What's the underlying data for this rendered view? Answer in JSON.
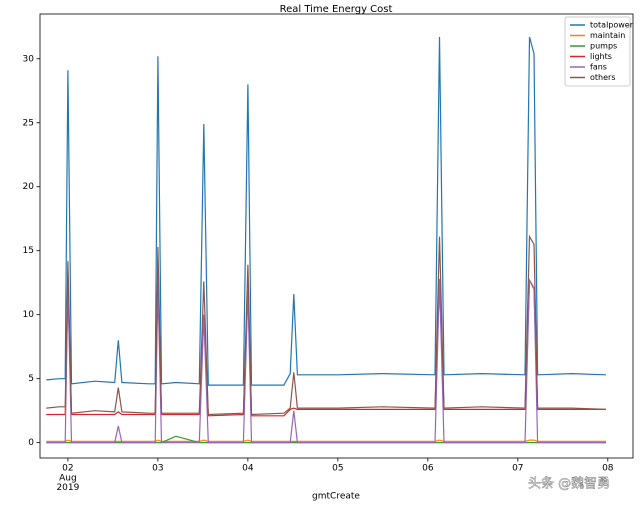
{
  "chart_data": {
    "type": "line",
    "title": "Real Time Energy Cost",
    "x_label": "gmtCreate",
    "x": [
      1.76,
      1.9,
      1.97,
      2.0,
      2.04,
      2.3,
      2.52,
      2.56,
      2.6,
      2.9,
      2.97,
      3.0,
      3.04,
      3.2,
      3.46,
      3.51,
      3.56,
      3.95,
      4.0,
      4.04,
      4.4,
      4.47,
      4.51,
      4.55,
      5.0,
      5.5,
      6.08,
      6.13,
      6.18,
      6.6,
      7.08,
      7.13,
      7.18,
      7.22,
      7.6,
      7.98
    ],
    "series": [
      {
        "name": "totalpower",
        "color": "#1f77b4",
        "values": [
          4.9,
          5.0,
          5.0,
          29.1,
          4.6,
          4.8,
          4.7,
          8.0,
          4.7,
          4.6,
          4.6,
          30.2,
          4.6,
          4.7,
          4.6,
          24.9,
          4.5,
          4.5,
          28.0,
          4.5,
          4.5,
          5.4,
          11.6,
          5.3,
          5.3,
          5.4,
          5.3,
          31.7,
          5.3,
          5.4,
          5.3,
          31.7,
          30.4,
          5.3,
          5.4,
          5.3
        ]
      },
      {
        "name": "maintain",
        "color": "#ff7f0e",
        "values": [
          0.1,
          0.1,
          0.1,
          0.2,
          0.1,
          0.1,
          0.1,
          0.1,
          0.1,
          0.1,
          0.1,
          0.2,
          0.1,
          0.1,
          0.1,
          0.2,
          0.1,
          0.1,
          0.2,
          0.1,
          0.1,
          0.1,
          0.1,
          0.1,
          0.1,
          0.1,
          0.1,
          0.2,
          0.1,
          0.1,
          0.1,
          0.2,
          0.2,
          0.1,
          0.1,
          0.1
        ]
      },
      {
        "name": "pumps",
        "color": "#2ca02c",
        "values": [
          0,
          0,
          0,
          0,
          0,
          0,
          0,
          0,
          0,
          0,
          0,
          0,
          0,
          0.5,
          0,
          0,
          0,
          0,
          0,
          0,
          0,
          0,
          0,
          0,
          0,
          0,
          0,
          0,
          0,
          0,
          0,
          0,
          0,
          0,
          0,
          0
        ]
      },
      {
        "name": "lights",
        "color": "#d62728",
        "values": [
          2.2,
          2.2,
          2.2,
          12.0,
          2.2,
          2.2,
          2.2,
          2.4,
          2.2,
          2.2,
          2.2,
          12.5,
          2.2,
          2.2,
          2.2,
          9.8,
          2.1,
          2.2,
          11.8,
          2.1,
          2.1,
          2.6,
          2.7,
          2.6,
          2.6,
          2.6,
          2.6,
          12.7,
          2.6,
          2.6,
          2.6,
          12.7,
          12.0,
          2.6,
          2.6,
          2.6
        ]
      },
      {
        "name": "fans",
        "color": "#9467bd",
        "values": [
          0,
          0,
          0,
          12.5,
          0,
          0,
          0,
          1.3,
          0,
          0,
          0,
          12.6,
          0,
          0,
          0,
          10.0,
          0,
          0,
          11.9,
          0,
          0,
          0,
          2.5,
          0,
          0,
          0,
          0,
          12.8,
          0,
          0,
          0,
          12.7,
          12.1,
          0,
          0,
          0
        ]
      },
      {
        "name": "others",
        "color": "#8c564b",
        "values": [
          2.7,
          2.8,
          2.8,
          14.2,
          2.3,
          2.5,
          2.4,
          4.3,
          2.4,
          2.3,
          2.3,
          15.3,
          2.3,
          2.3,
          2.3,
          12.6,
          2.2,
          2.3,
          13.9,
          2.2,
          2.3,
          2.7,
          5.5,
          2.7,
          2.7,
          2.8,
          2.7,
          16.1,
          2.7,
          2.8,
          2.7,
          16.1,
          15.5,
          2.7,
          2.7,
          2.6
        ]
      }
    ],
    "xlim": [
      1.69,
      8.28
    ],
    "xticks": [
      {
        "value": 2,
        "label": "02"
      },
      {
        "value": 3,
        "label": "03"
      },
      {
        "value": 4,
        "label": "04"
      },
      {
        "value": 5,
        "label": "05"
      },
      {
        "value": 6,
        "label": "06"
      },
      {
        "value": 7,
        "label": "07"
      },
      {
        "value": 8,
        "label": "08"
      }
    ],
    "xtick_sublabels": [
      "Aug",
      "2019"
    ],
    "ylim": [
      -1.2,
      33.5
    ],
    "yticks": [
      0,
      5,
      10,
      15,
      20,
      25,
      30
    ],
    "legend": "upper right",
    "grid": false,
    "watermark": "头条 @魏智勇"
  }
}
